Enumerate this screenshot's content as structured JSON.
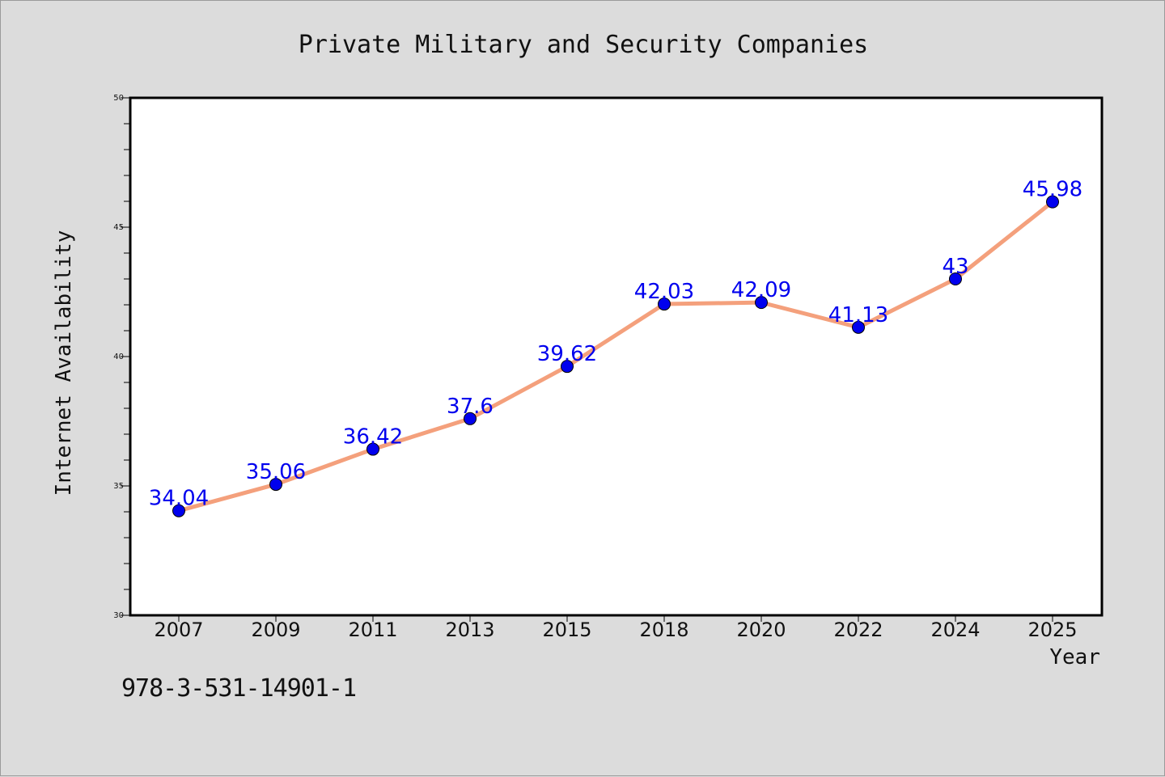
{
  "chart_data": {
    "type": "line",
    "title": "Private Military and Security Companies",
    "xlabel": "Year",
    "ylabel": "Internet Availability",
    "categories": [
      "2007",
      "2009",
      "2011",
      "2013",
      "2015",
      "2018",
      "2020",
      "2022",
      "2024",
      "2025"
    ],
    "series": [
      {
        "values": [
          34.04,
          35.06,
          36.42,
          37.6,
          39.62,
          42.03,
          42.09,
          41.13,
          43,
          45.98
        ],
        "data_labels": [
          "34.04",
          "35.06",
          "36.42",
          "37.6",
          "39.62",
          "42.03",
          "42.09",
          "41.13",
          "43",
          "45.98"
        ],
        "line_color": "#f4a07c",
        "marker_color": "#0000ee",
        "label_color": "#0000ee"
      }
    ],
    "ylim": [
      30,
      50
    ],
    "y_ticks": [
      "30",
      "35",
      "40",
      "45",
      "50"
    ],
    "grid": false,
    "legend": "none"
  },
  "footer": {
    "code": "978-3-531-14901-1"
  }
}
